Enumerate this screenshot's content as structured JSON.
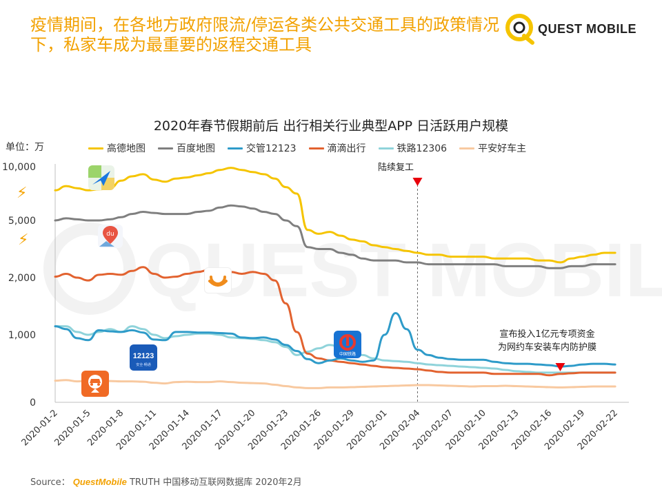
{
  "headline": {
    "line1": "疫情期间，在各地方政府限流/停运各类公共交通工具的政策情况",
    "line2": "下，私家车成为最重要的返程交通工具"
  },
  "logo": {
    "text": "QUEST MOBILE",
    "icon": "quest-mobile-logo-icon",
    "color": "#f5c400"
  },
  "watermark": {
    "text": "QUEST MOBILE"
  },
  "source": {
    "label": "Source：",
    "brand": "QuestMobile",
    "rest": "TRUTH 中国移动互联网数据库 2020年2月"
  },
  "colors": {
    "accent": "#f2a100"
  },
  "icons": [
    "gaode-map-icon",
    "baidu-map-icon",
    "didi-icon",
    "jiaoguan-12123-icon",
    "railway-12306-icon",
    "pingan-haochezhu-icon",
    "lightning-icon"
  ],
  "chart_data": {
    "type": "line",
    "title": "2020年春节假期前后 出行相关行业典型APP 日活跃用户规模",
    "unit_label": "单位：万",
    "y_scale": "nonlinear",
    "y_ticks": [
      {
        "label": "0",
        "value": 0
      },
      {
        "label": "1,000",
        "value": 1000
      },
      {
        "label": "2,000",
        "value": 2000
      },
      {
        "label": "5,000",
        "value": 5000
      },
      {
        "label": "10,000",
        "value": 10000
      }
    ],
    "x_tick_labels": [
      "2020-01-2",
      "2020-01-5",
      "2020-01-8",
      "2020-01-11",
      "2020-01-14",
      "2020-01-17",
      "2020-01-20",
      "2020-01-23",
      "2020-01-26",
      "2020-01-29",
      "2020-02-01",
      "2020-02-04",
      "2020-02-07",
      "2020-02-10",
      "2020-02-13",
      "2020-02-16",
      "2020-02-19",
      "2020-02-22"
    ],
    "x_range": [
      "2020-01-02",
      "2020-02-23"
    ],
    "series": [
      {
        "name": "高德地图",
        "color": "#f5c400",
        "values": [
          7800,
          8200,
          8000,
          7800,
          7900,
          8000,
          8700,
          9100,
          9300,
          8800,
          8600,
          8900,
          9000,
          9200,
          9400,
          9700,
          9900,
          9700,
          9500,
          9300,
          8900,
          8100,
          7500,
          4500,
          4300,
          4400,
          4200,
          4000,
          3900,
          3700,
          3600,
          3500,
          3400,
          3300,
          3200,
          3200,
          3100,
          3100,
          3100,
          3100,
          3000,
          3000,
          3000,
          3000,
          2900,
          2900,
          2800,
          3000,
          3100,
          3200,
          3300,
          3300
        ]
      },
      {
        "name": "百度地图",
        "color": "#7f7f7f",
        "values": [
          5000,
          5200,
          5100,
          5000,
          5000,
          5100,
          5300,
          5600,
          5800,
          5700,
          5600,
          5600,
          5600,
          5800,
          5900,
          6200,
          6400,
          6300,
          6100,
          5800,
          5600,
          5000,
          4700,
          3600,
          3500,
          3500,
          3300,
          3200,
          3000,
          2900,
          2900,
          2900,
          2800,
          2800,
          2700,
          2700,
          2700,
          2700,
          2700,
          2700,
          2700,
          2600,
          2600,
          2600,
          2600,
          2500,
          2500,
          2600,
          2600,
          2700,
          2700,
          2700
        ]
      },
      {
        "name": "交管12123",
        "color": "#2e9bc9",
        "values": [
          1150,
          1100,
          950,
          920,
          1080,
          1060,
          1050,
          1080,
          1040,
          930,
          920,
          1050,
          1050,
          1040,
          1040,
          1030,
          1020,
          960,
          950,
          960,
          930,
          850,
          760,
          640,
          580,
          620,
          650,
          620,
          600,
          620,
          1000,
          1380,
          1100,
          780,
          700,
          660,
          640,
          630,
          630,
          630,
          600,
          580,
          570,
          570,
          560,
          550,
          530,
          540,
          560,
          570,
          570,
          560
        ]
      },
      {
        "name": "滴滴出行",
        "color": "#e2622f",
        "values": [
          2050,
          2200,
          2000,
          1950,
          2150,
          2200,
          2150,
          2350,
          2550,
          2200,
          2000,
          2050,
          2200,
          2300,
          2400,
          2450,
          2300,
          2200,
          2300,
          2200,
          1950,
          1550,
          1050,
          720,
          650,
          620,
          600,
          580,
          560,
          540,
          520,
          510,
          500,
          490,
          470,
          450,
          440,
          440,
          440,
          440,
          420,
          420,
          420,
          420,
          420,
          400,
          420,
          430,
          440,
          440,
          440,
          440
        ]
      },
      {
        "name": "铁路12306",
        "color": "#8fd3da",
        "values": [
          1150,
          1150,
          1050,
          1000,
          1050,
          1100,
          1050,
          1150,
          1100,
          1000,
          950,
          980,
          1000,
          1020,
          1020,
          1000,
          960,
          950,
          940,
          920,
          890,
          820,
          700,
          750,
          800,
          850,
          820,
          760,
          700,
          650,
          620,
          610,
          600,
          580,
          560,
          550,
          540,
          530,
          520,
          510,
          500,
          480,
          460,
          450,
          440,
          440,
          440,
          440,
          440,
          440,
          440,
          440
        ]
      },
      {
        "name": "平安好车主",
        "color": "#f8c9a0",
        "values": [
          320,
          330,
          310,
          320,
          310,
          315,
          310,
          310,
          305,
          290,
          280,
          300,
          305,
          300,
          300,
          310,
          300,
          290,
          285,
          280,
          260,
          240,
          220,
          210,
          210,
          220,
          220,
          225,
          230,
          235,
          240,
          245,
          250,
          255,
          255,
          250,
          245,
          240,
          235,
          240,
          240,
          245,
          240,
          235,
          230,
          225,
          220,
          225,
          230,
          235,
          235,
          235
        ]
      }
    ],
    "annotations": [
      {
        "text": "陆续复工",
        "x_date": "2020-02-04",
        "marker": "triangle-down",
        "color": "#e8000b"
      },
      {
        "text": "宣布投入1亿元专项资金\n为网约车安装车内防护膜",
        "x_date": "2020-02-17",
        "marker": "triangle-down",
        "color": "#e8000b"
      }
    ],
    "legend_position": "top",
    "grid": false
  }
}
